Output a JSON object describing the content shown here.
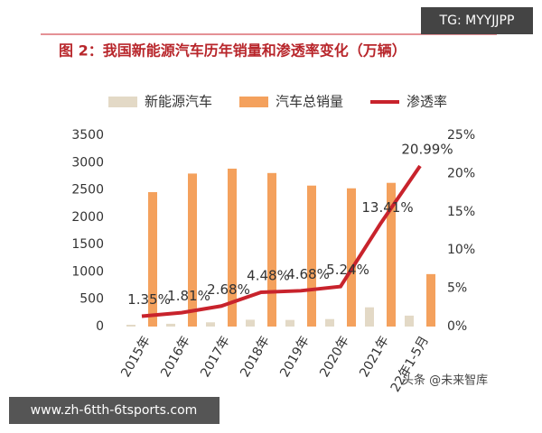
{
  "chart_data": {
    "type": "bar_line",
    "title": "图 2：我国新能源汽车历年销量和渗透率变化（万辆）",
    "categories": [
      "2015年",
      "2016年",
      "2017年",
      "2018年",
      "2019年",
      "2020年",
      "2021年",
      "22年1-5月"
    ],
    "series": [
      {
        "name": "新能源汽车",
        "color": "#e3d9c6",
        "type": "bar",
        "values": [
          33,
          51,
          78,
          125,
          121,
          137,
          352,
          200
        ]
      },
      {
        "name": "汽车总销量",
        "color": "#f4a15d",
        "type": "bar",
        "values": [
          2460,
          2800,
          2890,
          2810,
          2580,
          2530,
          2630,
          960
        ]
      },
      {
        "name": "渗透率",
        "color": "#c8232c",
        "type": "line",
        "axis": "y2",
        "values": [
          1.35,
          1.81,
          2.68,
          4.48,
          4.68,
          5.24,
          13.41,
          20.99
        ],
        "value_labels": [
          "1.35%",
          "1.81%",
          "2.68%",
          "4.48%",
          "4.68%",
          "5.24%",
          "13.41%",
          "20.99%"
        ]
      }
    ],
    "ylim": [
      0,
      3500
    ],
    "yticks": [
      0,
      500,
      1000,
      1500,
      2000,
      2500,
      3000,
      3500
    ],
    "y2lim": [
      0,
      25
    ],
    "y2ticks": [
      {
        "value": 0,
        "label": "0%"
      },
      {
        "value": 5,
        "label": "5%"
      },
      {
        "value": 10,
        "label": "10%"
      },
      {
        "value": 15,
        "label": "15%"
      },
      {
        "value": 20,
        "label": "20%"
      },
      {
        "value": 25,
        "label": "25%"
      }
    ],
    "grid": false,
    "legend": "top"
  },
  "overlays": {
    "tg": "TG: MYYJJPP",
    "site": "www.zh-6tth-6tsports.com",
    "source": "头条 @未来智库"
  }
}
